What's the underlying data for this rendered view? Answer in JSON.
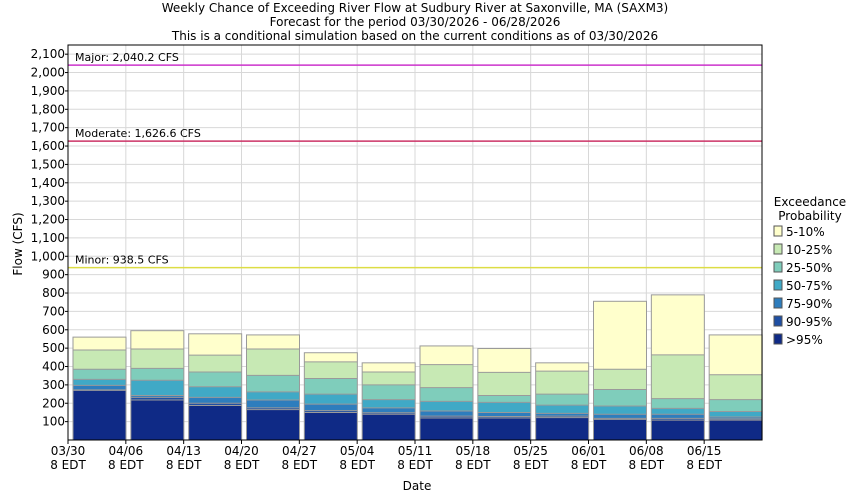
{
  "chart_data": {
    "type": "bar",
    "title": [
      "Weekly Chance of Exceeding River Flow at Sudbury River at Saxonville, MA (SAXM3)",
      "Forecast for the period 03/30/2026 - 06/28/2026",
      "This is a conditional simulation based on the current conditions as of 03/30/2026"
    ],
    "xlabel": "Date",
    "ylabel": "Flow (CFS)",
    "ylim": [
      0,
      2150
    ],
    "yticks": [
      100,
      200,
      300,
      400,
      500,
      600,
      700,
      800,
      900,
      1000,
      1100,
      1200,
      1300,
      1400,
      1500,
      1600,
      1700,
      1800,
      1900,
      2000,
      2100
    ],
    "ytick_labels": [
      "100",
      "200",
      "300",
      "400",
      "500",
      "600",
      "700",
      "800",
      "900",
      "1,000",
      "1,100",
      "1,200",
      "1,300",
      "1,400",
      "1,500",
      "1,600",
      "1,700",
      "1,800",
      "1,900",
      "2,000",
      "2,100"
    ],
    "x_tick_labels": [
      [
        "03/30",
        "8 EDT"
      ],
      [
        "04/06",
        "8 EDT"
      ],
      [
        "04/13",
        "8 EDT"
      ],
      [
        "04/20",
        "8 EDT"
      ],
      [
        "04/27",
        "8 EDT"
      ],
      [
        "05/04",
        "8 EDT"
      ],
      [
        "05/11",
        "8 EDT"
      ],
      [
        "05/18",
        "8 EDT"
      ],
      [
        "05/25",
        "8 EDT"
      ],
      [
        "06/01",
        "8 EDT"
      ],
      [
        "06/08",
        "8 EDT"
      ],
      [
        "06/15",
        "8 EDT"
      ]
    ],
    "grid": true,
    "legend": {
      "title": [
        "Exceedance",
        "Probability"
      ],
      "placement": "right"
    },
    "thresholds": [
      {
        "label": "Major: 2,040.2 CFS",
        "value": 2040.2,
        "color": "#cc33cc"
      },
      {
        "label": "Moderate: 1,626.6 CFS",
        "value": 1626.6,
        "color": "#cc3366"
      },
      {
        "label": "Minor: 938.5 CFS",
        "value": 938.5,
        "color": "#dddd44"
      }
    ],
    "categories": [
      "03/30",
      "04/06",
      "04/13",
      "04/20",
      "04/27",
      "05/04",
      "05/11",
      "05/18",
      "05/25",
      "06/01",
      "06/08",
      "06/15"
    ],
    "boundaries": [
      [
        0,
        270,
        273,
        297,
        330,
        385,
        490,
        560
      ],
      [
        0,
        218,
        232,
        242,
        325,
        390,
        495,
        595
      ],
      [
        0,
        188,
        200,
        232,
        290,
        370,
        462,
        578
      ],
      [
        0,
        165,
        175,
        218,
        262,
        352,
        495,
        572
      ],
      [
        0,
        150,
        160,
        195,
        250,
        335,
        425,
        475
      ],
      [
        0,
        140,
        148,
        175,
        220,
        300,
        370,
        420
      ],
      [
        0,
        120,
        130,
        158,
        210,
        285,
        410,
        512
      ],
      [
        0,
        120,
        128,
        150,
        205,
        242,
        368,
        498
      ],
      [
        0,
        122,
        130,
        145,
        190,
        250,
        375,
        420
      ],
      [
        0,
        112,
        118,
        140,
        185,
        275,
        385,
        755
      ],
      [
        0,
        108,
        118,
        140,
        172,
        225,
        463,
        790
      ],
      [
        0,
        108,
        115,
        125,
        155,
        220,
        355,
        572
      ]
    ],
    "series": [
      {
        "name": ">95%",
        "color": "#0f2a86"
      },
      {
        "name": "90-95%",
        "color": "#1f4fa3"
      },
      {
        "name": "75-90%",
        "color": "#2e7dbd"
      },
      {
        "name": "50-75%",
        "color": "#40a9c6"
      },
      {
        "name": "25-50%",
        "color": "#7fcdbb"
      },
      {
        "name": "10-25%",
        "color": "#c7e9b4"
      },
      {
        "name": "5-10%",
        "color": "#ffffcc"
      }
    ]
  }
}
